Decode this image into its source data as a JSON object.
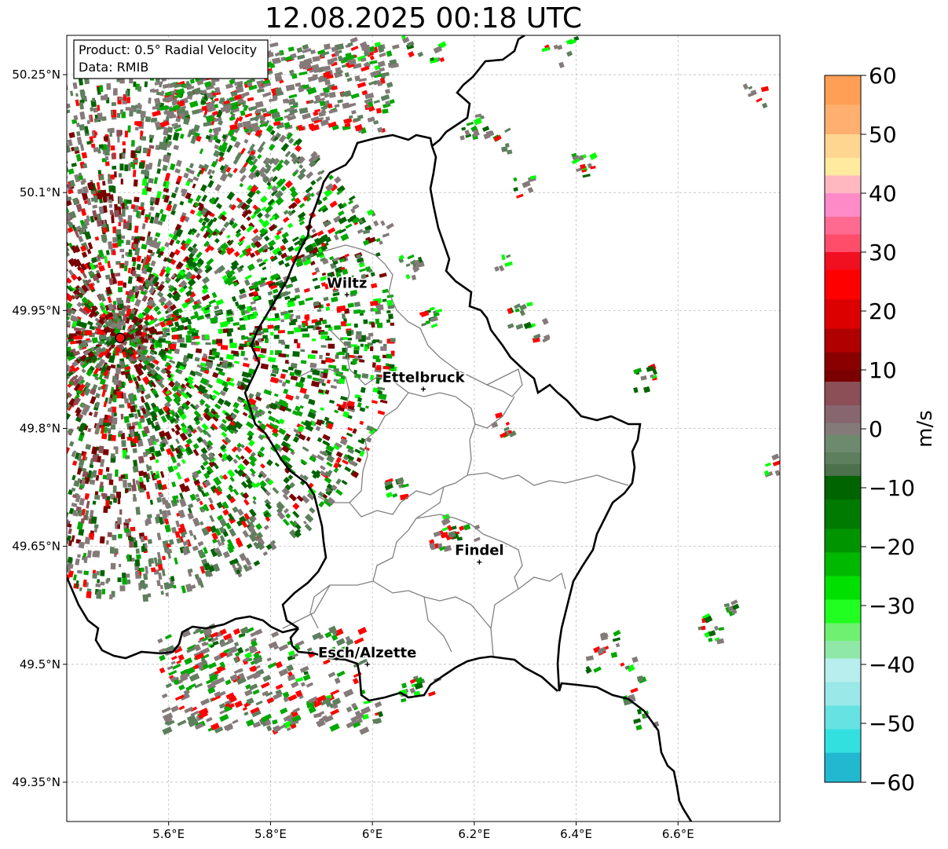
{
  "title": "12.08.2025 00:18 UTC",
  "info_box": {
    "product": "Product: 0.5° Radial Velocity",
    "data": "Data: RMIB"
  },
  "map": {
    "lon_range": [
      5.4,
      6.8
    ],
    "lat_range": [
      49.3,
      50.3
    ],
    "lat_ticks": [
      {
        "value": 50.25,
        "label": "50.25°N"
      },
      {
        "value": 50.1,
        "label": "50.1°N"
      },
      {
        "value": 49.95,
        "label": "49.95°N"
      },
      {
        "value": 49.8,
        "label": "49.8°N"
      },
      {
        "value": 49.65,
        "label": "49.65°N"
      },
      {
        "value": 49.5,
        "label": "49.5°N"
      },
      {
        "value": 49.35,
        "label": "49.35°N"
      }
    ],
    "lon_ticks": [
      {
        "value": 5.6,
        "label": "5.6°E"
      },
      {
        "value": 5.8,
        "label": "5.8°E"
      },
      {
        "value": 6.0,
        "label": "6°E"
      },
      {
        "value": 6.2,
        "label": "6.2°E"
      },
      {
        "value": 6.4,
        "label": "6.4°E"
      },
      {
        "value": 6.6,
        "label": "6.6°E"
      }
    ],
    "grid": true,
    "radar_site": {
      "lon": 5.505,
      "lat": 49.915
    },
    "cities": [
      {
        "name": "Wiltz",
        "lon": 5.95,
        "lat": 49.97
      },
      {
        "name": "Ettelbruck",
        "lon": 6.1,
        "lat": 49.85
      },
      {
        "name": "Findel",
        "lon": 6.21,
        "lat": 49.63
      },
      {
        "name": "Esch/Alzette",
        "lon": 5.99,
        "lat": 49.5
      }
    ]
  },
  "colorbar": {
    "label": "m/s",
    "vmin": -60,
    "vmax": 60,
    "ticks": [
      {
        "value": 60,
        "label": "60"
      },
      {
        "value": 50,
        "label": "50"
      },
      {
        "value": 40,
        "label": "40"
      },
      {
        "value": 30,
        "label": "30"
      },
      {
        "value": 20,
        "label": "20"
      },
      {
        "value": 10,
        "label": "10"
      },
      {
        "value": 0,
        "label": "0"
      },
      {
        "value": -10,
        "label": "−10"
      },
      {
        "value": -20,
        "label": "−20"
      },
      {
        "value": -30,
        "label": "−30"
      },
      {
        "value": -40,
        "label": "−40"
      },
      {
        "value": -50,
        "label": "−50"
      },
      {
        "value": -60,
        "label": "−60"
      }
    ],
    "colors": {
      "orange": "#ff9f55",
      "peach": "#ffd68f",
      "pink": "#ff8ac8",
      "red_pink": "#ff4d6a",
      "red": "#ff0000",
      "dark_red": "#7a0000",
      "brown_gray": "#8c4f57",
      "gray": "#857a7a",
      "gray_green": "#5d7f5d",
      "dark_green": "#006400",
      "green": "#00a800",
      "bright_green": "#00ff00",
      "pale_green": "#8fe8a8",
      "pale_cyan": "#b8eeee",
      "cyan": "#33e0e0",
      "blue": "#2080c0"
    }
  }
}
